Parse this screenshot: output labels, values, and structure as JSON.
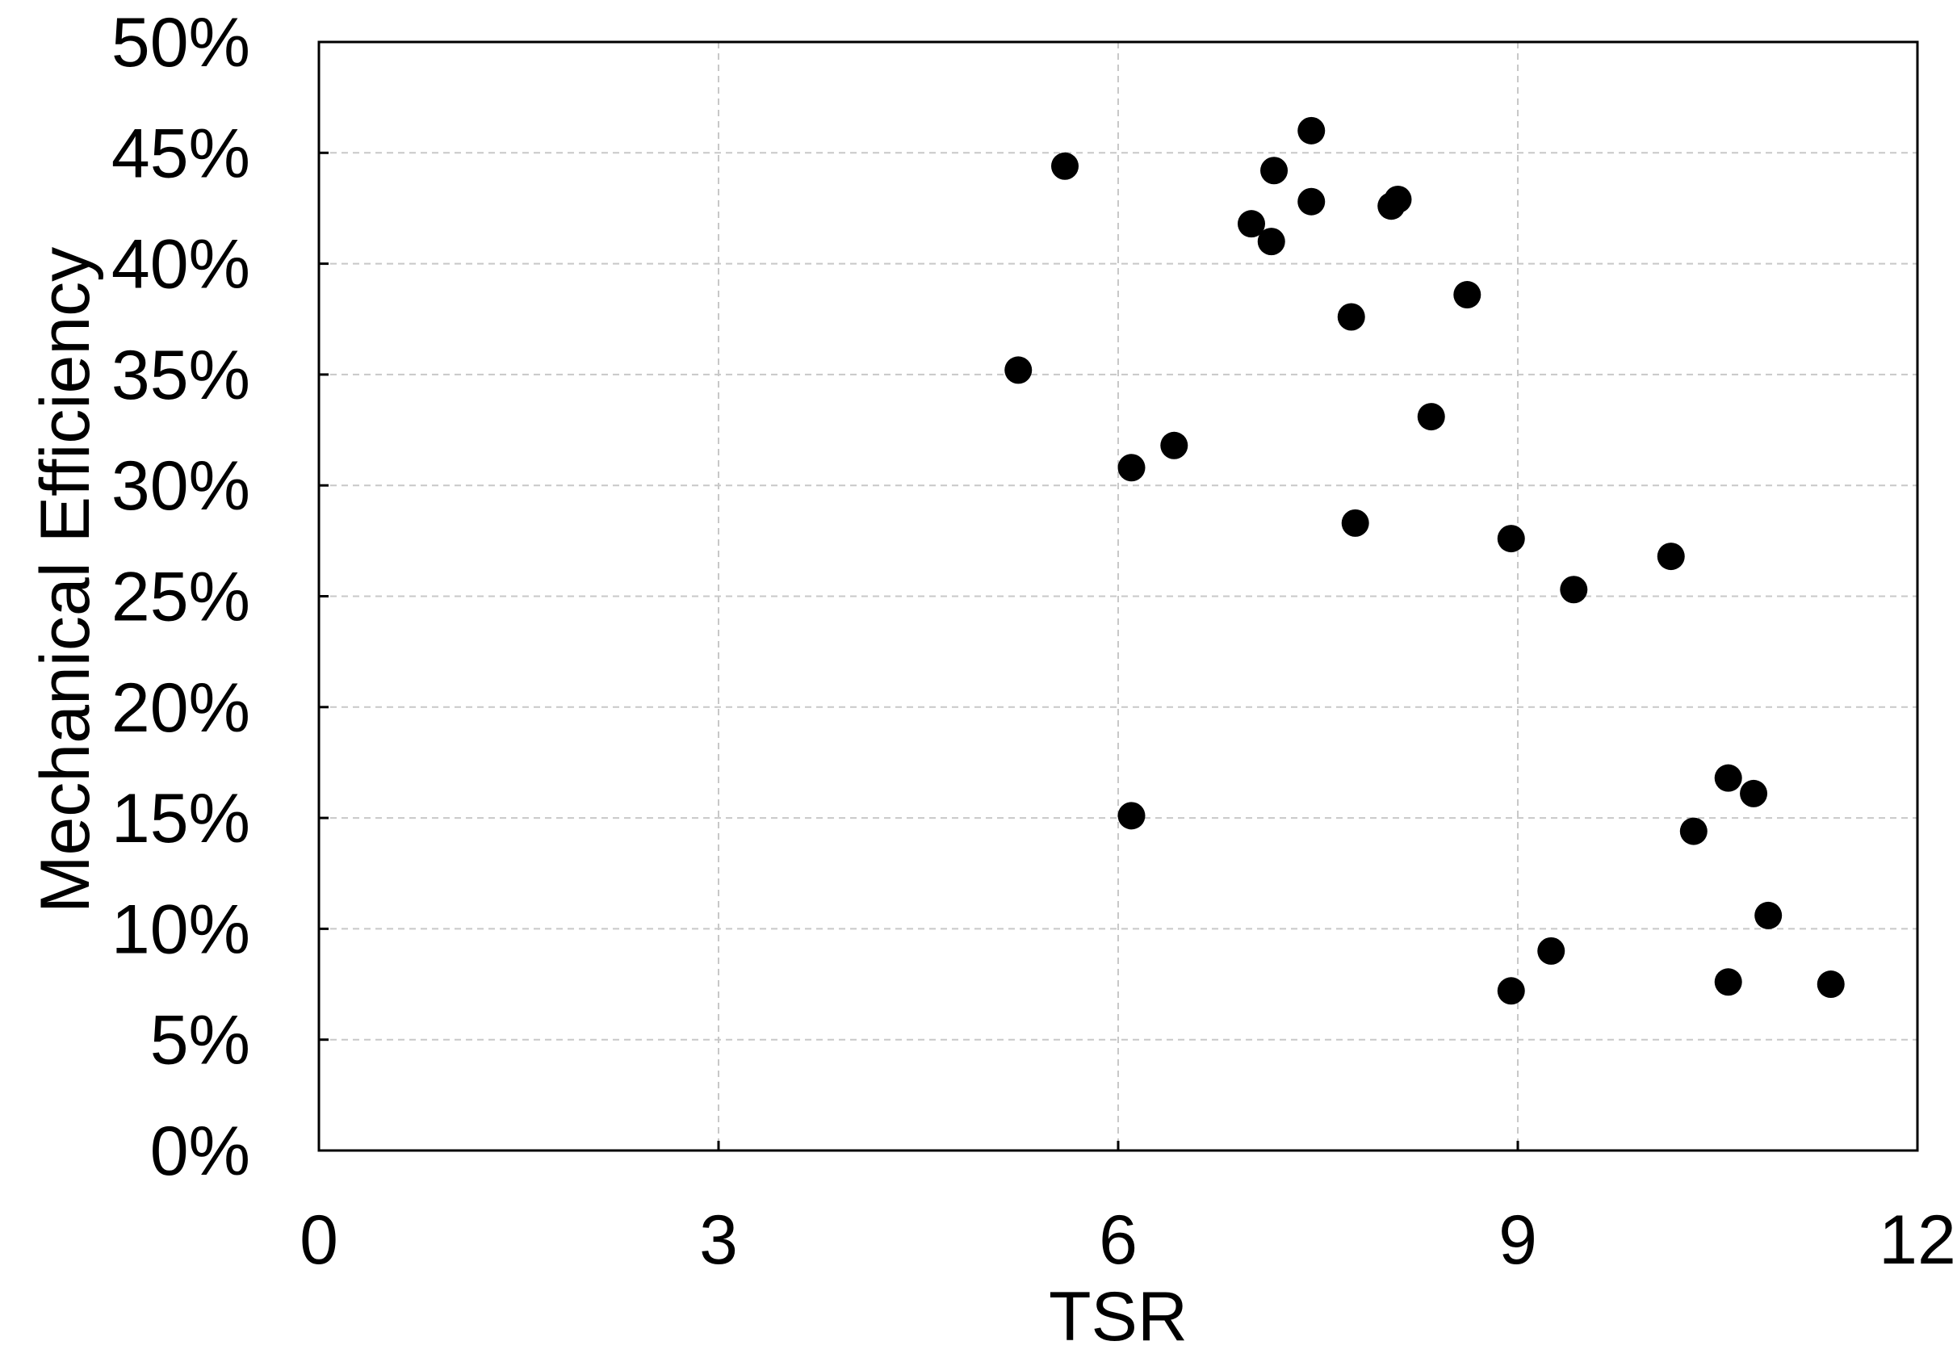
{
  "chart_data": {
    "type": "scatter",
    "title": "",
    "xlabel": "TSR",
    "ylabel": "Mechanical Efficiency",
    "xlim": [
      0,
      12
    ],
    "ylim": [
      0,
      50
    ],
    "x_ticks": [
      0,
      3,
      6,
      9,
      12
    ],
    "x_tick_labels": [
      "0",
      "3",
      "6",
      "9",
      "12"
    ],
    "y_ticks": [
      0,
      5,
      10,
      15,
      20,
      25,
      30,
      35,
      40,
      45,
      50
    ],
    "y_tick_labels": [
      "0%",
      "5%",
      "10%",
      "15%",
      "20%",
      "25%",
      "30%",
      "35%",
      "40%",
      "45%",
      "50%"
    ],
    "y_unit": "%",
    "grid": true,
    "legend": "none",
    "marker_color": "#000000",
    "series": [
      {
        "points": [
          {
            "x": 5.25,
            "y": 35.2
          },
          {
            "x": 5.6,
            "y": 44.4
          },
          {
            "x": 6.1,
            "y": 30.8
          },
          {
            "x": 6.1,
            "y": 15.1
          },
          {
            "x": 6.42,
            "y": 31.8
          },
          {
            "x": 7.0,
            "y": 41.8
          },
          {
            "x": 7.15,
            "y": 41.0
          },
          {
            "x": 7.17,
            "y": 44.2
          },
          {
            "x": 7.45,
            "y": 42.8
          },
          {
            "x": 7.45,
            "y": 46.0
          },
          {
            "x": 7.75,
            "y": 37.6
          },
          {
            "x": 7.78,
            "y": 28.3
          },
          {
            "x": 8.05,
            "y": 42.6
          },
          {
            "x": 8.1,
            "y": 42.9
          },
          {
            "x": 8.35,
            "y": 33.1
          },
          {
            "x": 8.62,
            "y": 38.6
          },
          {
            "x": 8.95,
            "y": 27.6
          },
          {
            "x": 8.95,
            "y": 7.2
          },
          {
            "x": 9.25,
            "y": 9.0
          },
          {
            "x": 9.42,
            "y": 25.3
          },
          {
            "x": 10.15,
            "y": 26.8
          },
          {
            "x": 10.32,
            "y": 14.4
          },
          {
            "x": 10.58,
            "y": 16.8
          },
          {
            "x": 10.58,
            "y": 7.6
          },
          {
            "x": 10.77,
            "y": 16.1
          },
          {
            "x": 10.88,
            "y": 10.6
          },
          {
            "x": 11.35,
            "y": 7.5
          }
        ]
      }
    ]
  }
}
